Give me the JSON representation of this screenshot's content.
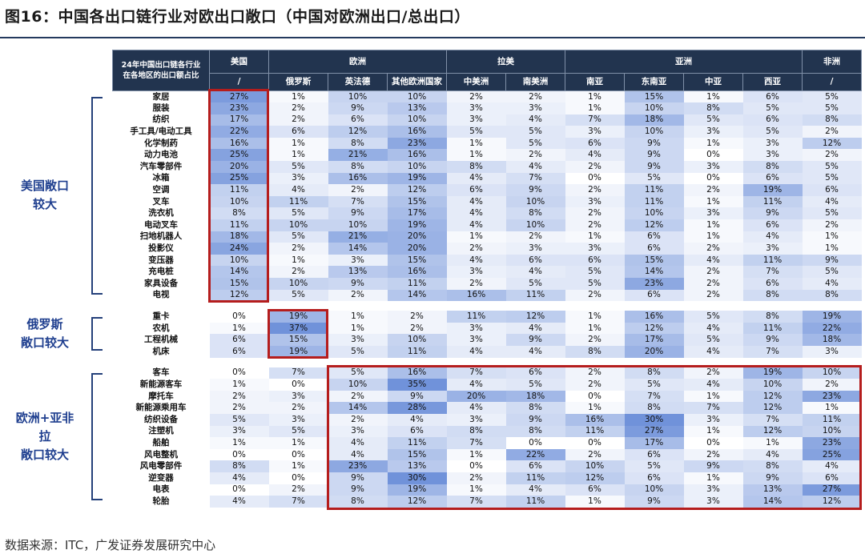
{
  "title": "图16：中国各出口链行业对欧出口敞口（中国对欧洲出口/总出口）",
  "source": "数据来源：ITC，广发证券发展研究中心",
  "header": {
    "corner": "24年中国出口链各行业\n在各地区的出口额占比",
    "regions": [
      "美国",
      "欧洲",
      "拉美",
      "亚洲",
      "非洲"
    ],
    "sub": [
      "/",
      "俄罗斯",
      "英法德",
      "其他欧洲国家",
      "中美洲",
      "南美洲",
      "南亚",
      "东南亚",
      "中亚",
      "西亚",
      "/"
    ]
  },
  "groups": [
    {
      "label": "美国敞口\n较大",
      "rows": [
        [
          "家居",
          "27%",
          "1%",
          "10%",
          "10%",
          "2%",
          "2%",
          "1%",
          "15%",
          "1%",
          "6%",
          "5%"
        ],
        [
          "服装",
          "23%",
          "2%",
          "9%",
          "13%",
          "3%",
          "3%",
          "1%",
          "10%",
          "8%",
          "5%",
          "5%"
        ],
        [
          "纺织",
          "17%",
          "2%",
          "6%",
          "10%",
          "3%",
          "4%",
          "7%",
          "18%",
          "5%",
          "6%",
          "8%"
        ],
        [
          "手工具/电动工具",
          "22%",
          "6%",
          "12%",
          "16%",
          "5%",
          "5%",
          "3%",
          "10%",
          "3%",
          "5%",
          "2%"
        ],
        [
          "化学制药",
          "16%",
          "1%",
          "8%",
          "23%",
          "1%",
          "5%",
          "6%",
          "9%",
          "1%",
          "3%",
          "12%"
        ],
        [
          "动力电池",
          "25%",
          "1%",
          "21%",
          "16%",
          "1%",
          "2%",
          "4%",
          "9%",
          "0%",
          "3%",
          "2%"
        ],
        [
          "汽车零部件",
          "20%",
          "5%",
          "8%",
          "10%",
          "8%",
          "4%",
          "2%",
          "9%",
          "3%",
          "8%",
          "5%"
        ],
        [
          "冰箱",
          "25%",
          "3%",
          "16%",
          "19%",
          "4%",
          "7%",
          "0%",
          "5%",
          "0%",
          "6%",
          "5%"
        ],
        [
          "空调",
          "11%",
          "4%",
          "2%",
          "12%",
          "6%",
          "9%",
          "2%",
          "11%",
          "2%",
          "19%",
          "6%"
        ],
        [
          "叉车",
          "10%",
          "11%",
          "7%",
          "15%",
          "4%",
          "10%",
          "3%",
          "11%",
          "1%",
          "11%",
          "4%"
        ],
        [
          "洗衣机",
          "8%",
          "5%",
          "9%",
          "17%",
          "4%",
          "8%",
          "2%",
          "10%",
          "3%",
          "9%",
          "5%"
        ],
        [
          "电动叉车",
          "11%",
          "10%",
          "10%",
          "19%",
          "4%",
          "10%",
          "2%",
          "12%",
          "1%",
          "6%",
          "2%"
        ],
        [
          "扫地机器人",
          "18%",
          "5%",
          "21%",
          "20%",
          "1%",
          "2%",
          "1%",
          "6%",
          "1%",
          "4%",
          "1%"
        ],
        [
          "投影仪",
          "24%",
          "2%",
          "14%",
          "20%",
          "2%",
          "3%",
          "3%",
          "6%",
          "2%",
          "3%",
          "1%"
        ],
        [
          "变压器",
          "10%",
          "1%",
          "3%",
          "15%",
          "4%",
          "6%",
          "6%",
          "15%",
          "4%",
          "11%",
          "9%"
        ],
        [
          "充电桩",
          "14%",
          "2%",
          "13%",
          "16%",
          "3%",
          "4%",
          "5%",
          "14%",
          "2%",
          "7%",
          "5%"
        ],
        [
          "家具设备",
          "15%",
          "10%",
          "9%",
          "11%",
          "2%",
          "5%",
          "5%",
          "23%",
          "2%",
          "6%",
          "4%"
        ],
        [
          "电视",
          "12%",
          "5%",
          "2%",
          "14%",
          "16%",
          "11%",
          "2%",
          "6%",
          "2%",
          "8%",
          "8%"
        ]
      ]
    },
    {
      "label": "俄罗斯\n敞口较大",
      "rows": [
        [
          "重卡",
          "0%",
          "19%",
          "1%",
          "2%",
          "11%",
          "12%",
          "1%",
          "16%",
          "5%",
          "8%",
          "19%"
        ],
        [
          "农机",
          "1%",
          "37%",
          "1%",
          "2%",
          "3%",
          "4%",
          "1%",
          "12%",
          "4%",
          "11%",
          "22%"
        ],
        [
          "工程机械",
          "6%",
          "15%",
          "3%",
          "10%",
          "3%",
          "9%",
          "2%",
          "17%",
          "5%",
          "9%",
          "18%"
        ],
        [
          "机床",
          "6%",
          "19%",
          "5%",
          "11%",
          "4%",
          "4%",
          "8%",
          "20%",
          "4%",
          "7%",
          "3%"
        ]
      ]
    },
    {
      "label": "欧洲+亚非\n拉\n敞口较大",
      "rows": [
        [
          "客车",
          "0%",
          "7%",
          "5%",
          "16%",
          "7%",
          "6%",
          "2%",
          "8%",
          "2%",
          "19%",
          "10%"
        ],
        [
          "新能源客车",
          "1%",
          "0%",
          "10%",
          "35%",
          "4%",
          "5%",
          "2%",
          "5%",
          "4%",
          "10%",
          "2%"
        ],
        [
          "摩托车",
          "2%",
          "3%",
          "2%",
          "9%",
          "20%",
          "18%",
          "0%",
          "7%",
          "1%",
          "12%",
          "23%"
        ],
        [
          "新能源乘用车",
          "2%",
          "2%",
          "14%",
          "28%",
          "4%",
          "8%",
          "1%",
          "8%",
          "7%",
          "12%",
          "1%"
        ],
        [
          "纺织设备",
          "5%",
          "3%",
          "2%",
          "4%",
          "3%",
          "9%",
          "16%",
          "30%",
          "3%",
          "7%",
          "11%"
        ],
        [
          "注塑机",
          "3%",
          "5%",
          "3%",
          "6%",
          "8%",
          "8%",
          "11%",
          "27%",
          "1%",
          "12%",
          "10%"
        ],
        [
          "船舶",
          "1%",
          "1%",
          "4%",
          "11%",
          "7%",
          "0%",
          "0%",
          "17%",
          "0%",
          "1%",
          "23%"
        ],
        [
          "风电整机",
          "0%",
          "0%",
          "4%",
          "15%",
          "1%",
          "22%",
          "2%",
          "6%",
          "2%",
          "4%",
          "25%"
        ],
        [
          "风电零部件",
          "8%",
          "1%",
          "23%",
          "13%",
          "0%",
          "6%",
          "10%",
          "5%",
          "9%",
          "8%",
          "4%"
        ],
        [
          "逆变器",
          "4%",
          "0%",
          "9%",
          "30%",
          "2%",
          "11%",
          "12%",
          "6%",
          "1%",
          "9%",
          "6%"
        ],
        [
          "电表",
          "0%",
          "2%",
          "9%",
          "19%",
          "1%",
          "4%",
          "6%",
          "10%",
          "3%",
          "13%",
          "27%"
        ],
        [
          "轮胎",
          "4%",
          "7%",
          "8%",
          "12%",
          "7%",
          "11%",
          "1%",
          "9%",
          "3%",
          "14%",
          "12%"
        ]
      ]
    }
  ]
}
